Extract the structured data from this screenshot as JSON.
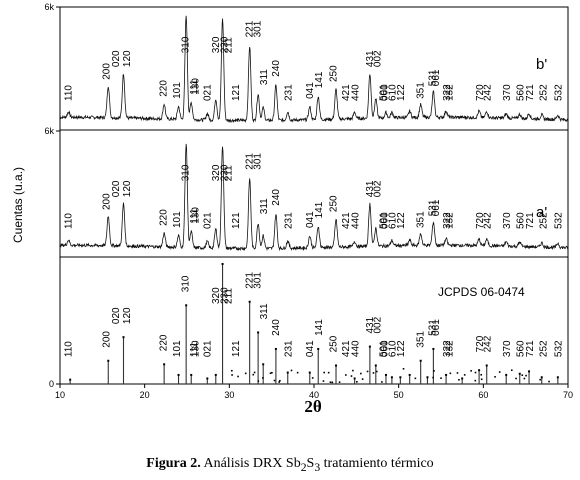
{
  "chart_data": {
    "type": "line",
    "xlabel": "2θ",
    "ylabel": "Cuentas (u.a.)",
    "xlim": [
      10,
      70
    ],
    "x_ticks": [
      "10",
      "20",
      "30",
      "40",
      "50",
      "60",
      "70"
    ],
    "y_ticks_top": [
      "6k",
      "6k"
    ],
    "y_ticks_bottom": [
      "0"
    ],
    "grid": false,
    "series": [
      {
        "name": "b'",
        "peaks": [
          {
            "x": 11.0,
            "h": 0.05
          },
          {
            "x": 15.7,
            "h": 0.3
          },
          {
            "x": 17.5,
            "h": 0.42
          },
          {
            "x": 22.3,
            "h": 0.14
          },
          {
            "x": 24.0,
            "h": 0.12
          },
          {
            "x": 24.9,
            "h": 0.98
          },
          {
            "x": 25.5,
            "h": 0.16
          },
          {
            "x": 27.4,
            "h": 0.06
          },
          {
            "x": 28.4,
            "h": 0.2
          },
          {
            "x": 29.2,
            "h": 0.96
          },
          {
            "x": 32.4,
            "h": 0.7
          },
          {
            "x": 33.4,
            "h": 0.25
          },
          {
            "x": 34.0,
            "h": 0.12
          },
          {
            "x": 35.5,
            "h": 0.33
          },
          {
            "x": 36.9,
            "h": 0.08
          },
          {
            "x": 39.5,
            "h": 0.12
          },
          {
            "x": 40.5,
            "h": 0.22
          },
          {
            "x": 42.6,
            "h": 0.28
          },
          {
            "x": 44.8,
            "h": 0.06
          },
          {
            "x": 46.6,
            "h": 0.42
          },
          {
            "x": 47.3,
            "h": 0.18
          },
          {
            "x": 48.5,
            "h": 0.05
          },
          {
            "x": 49.2,
            "h": 0.05
          },
          {
            "x": 51.3,
            "h": 0.06
          },
          {
            "x": 52.6,
            "h": 0.12
          },
          {
            "x": 54.1,
            "h": 0.24
          },
          {
            "x": 55.6,
            "h": 0.06
          },
          {
            "x": 59.5,
            "h": 0.06
          },
          {
            "x": 60.4,
            "h": 0.06
          },
          {
            "x": 62.7,
            "h": 0.04
          },
          {
            "x": 64.3,
            "h": 0.04
          },
          {
            "x": 65.4,
            "h": 0.05
          },
          {
            "x": 66.9,
            "h": 0.04
          },
          {
            "x": 68.8,
            "h": 0.04
          }
        ]
      },
      {
        "name": "a'",
        "peaks": [
          {
            "x": 11.0,
            "h": 0.05
          },
          {
            "x": 15.7,
            "h": 0.28
          },
          {
            "x": 17.5,
            "h": 0.4
          },
          {
            "x": 22.3,
            "h": 0.13
          },
          {
            "x": 24.0,
            "h": 0.11
          },
          {
            "x": 24.9,
            "h": 0.98
          },
          {
            "x": 25.5,
            "h": 0.15
          },
          {
            "x": 27.4,
            "h": 0.06
          },
          {
            "x": 28.4,
            "h": 0.18
          },
          {
            "x": 29.2,
            "h": 0.97
          },
          {
            "x": 32.4,
            "h": 0.66
          },
          {
            "x": 33.4,
            "h": 0.24
          },
          {
            "x": 34.0,
            "h": 0.12
          },
          {
            "x": 35.5,
            "h": 0.32
          },
          {
            "x": 36.9,
            "h": 0.07
          },
          {
            "x": 39.5,
            "h": 0.11
          },
          {
            "x": 40.5,
            "h": 0.2
          },
          {
            "x": 42.6,
            "h": 0.26
          },
          {
            "x": 44.8,
            "h": 0.05
          },
          {
            "x": 46.6,
            "h": 0.4
          },
          {
            "x": 47.3,
            "h": 0.17
          },
          {
            "x": 49.2,
            "h": 0.05
          },
          {
            "x": 51.3,
            "h": 0.05
          },
          {
            "x": 52.6,
            "h": 0.11
          },
          {
            "x": 54.1,
            "h": 0.22
          },
          {
            "x": 55.6,
            "h": 0.06
          },
          {
            "x": 59.5,
            "h": 0.06
          },
          {
            "x": 60.4,
            "h": 0.06
          },
          {
            "x": 62.7,
            "h": 0.04
          },
          {
            "x": 64.3,
            "h": 0.04
          },
          {
            "x": 66.9,
            "h": 0.04
          },
          {
            "x": 68.8,
            "h": 0.04
          }
        ]
      },
      {
        "name": "JCPDS 06-0474",
        "type": "stick",
        "sticks": [
          {
            "x": 11.2,
            "h": 0.02
          },
          {
            "x": 15.7,
            "h": 0.18
          },
          {
            "x": 17.5,
            "h": 0.38
          },
          {
            "x": 22.3,
            "h": 0.15
          },
          {
            "x": 24.0,
            "h": 0.06
          },
          {
            "x": 24.9,
            "h": 0.65
          },
          {
            "x": 25.5,
            "h": 0.06
          },
          {
            "x": 27.4,
            "h": 0.03
          },
          {
            "x": 28.4,
            "h": 0.06
          },
          {
            "x": 29.2,
            "h": 1.0
          },
          {
            "x": 32.4,
            "h": 0.68
          },
          {
            "x": 33.4,
            "h": 0.42
          },
          {
            "x": 34.0,
            "h": 0.15
          },
          {
            "x": 35.5,
            "h": 0.28
          },
          {
            "x": 36.9,
            "h": 0.08
          },
          {
            "x": 39.5,
            "h": 0.08
          },
          {
            "x": 40.5,
            "h": 0.28
          },
          {
            "x": 42.6,
            "h": 0.14
          },
          {
            "x": 44.8,
            "h": 0.03
          },
          {
            "x": 46.6,
            "h": 0.3
          },
          {
            "x": 47.3,
            "h": 0.14
          },
          {
            "x": 48.5,
            "h": 0.06
          },
          {
            "x": 49.2,
            "h": 0.04
          },
          {
            "x": 50.2,
            "h": 0.04
          },
          {
            "x": 51.3,
            "h": 0.06
          },
          {
            "x": 52.6,
            "h": 0.18
          },
          {
            "x": 53.4,
            "h": 0.04
          },
          {
            "x": 54.1,
            "h": 0.28
          },
          {
            "x": 55.6,
            "h": 0.06
          },
          {
            "x": 57.5,
            "h": 0.03
          },
          {
            "x": 59.5,
            "h": 0.1
          },
          {
            "x": 60.4,
            "h": 0.14
          },
          {
            "x": 62.7,
            "h": 0.06
          },
          {
            "x": 64.3,
            "h": 0.07
          },
          {
            "x": 65.4,
            "h": 0.09
          },
          {
            "x": 66.9,
            "h": 0.04
          },
          {
            "x": 68.8,
            "h": 0.04
          }
        ]
      }
    ],
    "peak_labels": [
      {
        "text": "110",
        "x": 11.0
      },
      {
        "text": "200",
        "x": 15.5
      },
      {
        "text": "020",
        "x": 16.6
      },
      {
        "text": "120",
        "x": 17.9
      },
      {
        "text": "220",
        "x": 22.2
      },
      {
        "text": "101",
        "x": 23.8
      },
      {
        "text": "310",
        "x": 24.8
      },
      {
        "text": "130",
        "x": 26.0
      },
      {
        "text": "111",
        "x": 25.8
      },
      {
        "text": "021",
        "x": 27.4
      },
      {
        "text": "320",
        "x": 28.4
      },
      {
        "text": "230",
        "x": 29.4
      },
      {
        "text": "211",
        "x": 29.9
      },
      {
        "text": "121",
        "x": 30.8
      },
      {
        "text": "221",
        "x": 32.4
      },
      {
        "text": "301",
        "x": 33.3
      },
      {
        "text": "311",
        "x": 34.1
      },
      {
        "text": "240",
        "x": 35.5
      },
      {
        "text": "231",
        "x": 37.0
      },
      {
        "text": "041",
        "x": 39.5
      },
      {
        "text": "141",
        "x": 40.6
      },
      {
        "text": "250",
        "x": 42.3
      },
      {
        "text": "421",
        "x": 43.8
      },
      {
        "text": "440",
        "x": 44.9
      },
      {
        "text": "431",
        "x": 46.6
      },
      {
        "text": "501",
        "x": 48.2
      },
      {
        "text": "002",
        "x": 47.5
      },
      {
        "text": "060",
        "x": 48.3
      },
      {
        "text": "610",
        "x": 49.3
      },
      {
        "text": "122",
        "x": 50.3
      },
      {
        "text": "351",
        "x": 52.6
      },
      {
        "text": "531",
        "x": 54.0
      },
      {
        "text": "061",
        "x": 54.4
      },
      {
        "text": "132",
        "x": 56.0
      },
      {
        "text": "322",
        "x": 55.7
      },
      {
        "text": "720",
        "x": 59.6
      },
      {
        "text": "242",
        "x": 60.5
      },
      {
        "text": "370",
        "x": 62.8
      },
      {
        "text": "560",
        "x": 64.4
      },
      {
        "text": "721",
        "x": 65.5
      },
      {
        "text": "252",
        "x": 67.1
      },
      {
        "text": "532",
        "x": 68.9
      }
    ]
  },
  "caption": {
    "bold": "Figura 2.",
    "text": " Análisis DRX Sb",
    "sub1": "2",
    "mid": "S",
    "sub2": "3",
    "rest": " tratamiento térmico"
  }
}
